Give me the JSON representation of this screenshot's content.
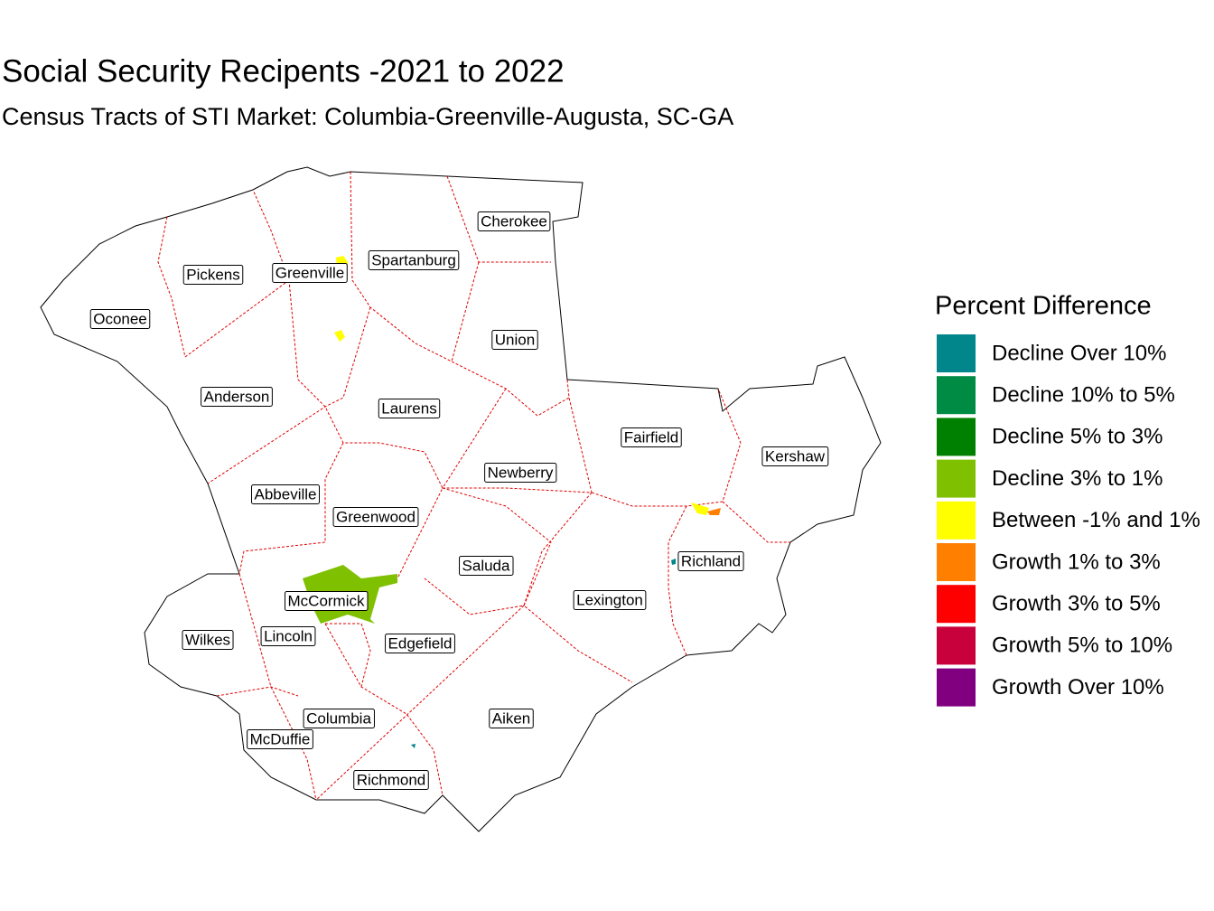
{
  "title": "Social Security Recipents -2021 to 2022",
  "subtitle": "Census Tracts of STI Market: Columbia-Greenville-Augusta, SC-GA",
  "legend": {
    "title": "Percent Difference",
    "items": [
      {
        "label": "Decline Over 10%",
        "color": "#00868b"
      },
      {
        "label": "Decline 10% to 5%",
        "color": "#008b45"
      },
      {
        "label": "Decline 5% to 3%",
        "color": "#008000"
      },
      {
        "label": "Decline 3% to 1%",
        "color": "#7fc000"
      },
      {
        "label": "Between -1% and 1%",
        "color": "#ffff00"
      },
      {
        "label": "Growth 1% to 3%",
        "color": "#ff7f00"
      },
      {
        "label": "Growth 3% to 5%",
        "color": "#ff0000"
      },
      {
        "label": "Growth 5% to 10%",
        "color": "#c8003c"
      },
      {
        "label": "Growth Over 10%",
        "color": "#800080"
      }
    ]
  },
  "counties": [
    {
      "name": "Cherokee"
    },
    {
      "name": "Pickens"
    },
    {
      "name": "Greenville"
    },
    {
      "name": "Spartanburg"
    },
    {
      "name": "Oconee"
    },
    {
      "name": "Union"
    },
    {
      "name": "Anderson"
    },
    {
      "name": "Laurens"
    },
    {
      "name": "Fairfield"
    },
    {
      "name": "Kershaw"
    },
    {
      "name": "Newberry"
    },
    {
      "name": "Abbeville"
    },
    {
      "name": "Greenwood"
    },
    {
      "name": "Saluda"
    },
    {
      "name": "Richland"
    },
    {
      "name": "McCormick"
    },
    {
      "name": "Lexington"
    },
    {
      "name": "Wilkes"
    },
    {
      "name": "Lincoln"
    },
    {
      "name": "Edgefield"
    },
    {
      "name": "Columbia"
    },
    {
      "name": "Aiken"
    },
    {
      "name": "McDuffie"
    },
    {
      "name": "Richmond"
    }
  ]
}
